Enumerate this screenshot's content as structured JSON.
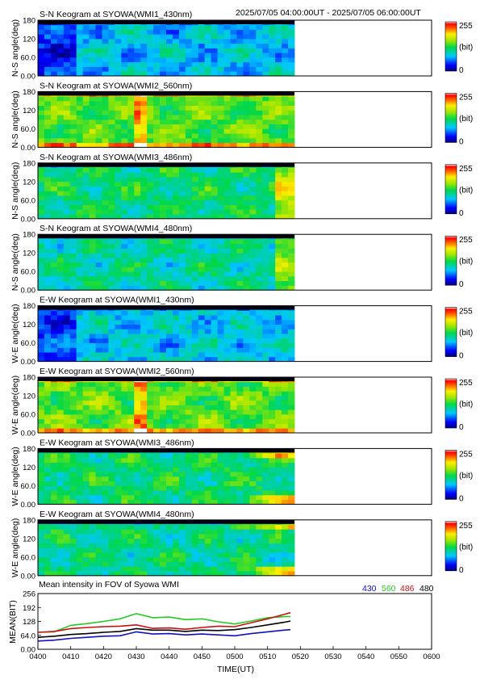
{
  "header": {
    "time_range": "2025/07/05 04:00:00UT - 2025/07/05 06:00:00UT"
  },
  "colorbar": {
    "max_label": "255",
    "unit_label": "(bit)",
    "min_label": "0"
  },
  "keograms": [
    {
      "title": "S-N Keogram at SYOWA(WMI1_430nm)",
      "ylabel": "N-S angle(deg)",
      "ticks": [
        "0.00",
        "60.0",
        "120",
        "180"
      ],
      "base": 0.3,
      "style": "blue"
    },
    {
      "title": "S-N Keogram at SYOWA(WMI2_560nm)",
      "ylabel": "N-S angle(deg)",
      "ticks": [
        "0.00",
        "60.0",
        "120",
        "180"
      ],
      "base": 0.55,
      "style": "green"
    },
    {
      "title": "S-N Keogram at SYOWA(WMI3_486nm)",
      "ylabel": "N-S angle(deg)",
      "ticks": [
        "0.00",
        "60.0",
        "120",
        "180"
      ],
      "base": 0.45,
      "style": "flat"
    },
    {
      "title": "S-N Keogram at SYOWA(WMI4_480nm)",
      "ylabel": "N-S angle(deg)",
      "ticks": [
        "0.00",
        "60.0",
        "120",
        "180"
      ],
      "base": 0.4,
      "style": "flat"
    },
    {
      "title": "E-W Keogram at SYOWA(WMI1_430nm)",
      "ylabel": "W-E angle(deg)",
      "ticks": [
        "0.00",
        "60.0",
        "120",
        "180"
      ],
      "base": 0.32,
      "style": "blue"
    },
    {
      "title": "E-W Keogram at SYOWA(WMI2_560nm)",
      "ylabel": "W-E angle(deg)",
      "ticks": [
        "0.00",
        "60.0",
        "120",
        "180"
      ],
      "base": 0.55,
      "style": "green"
    },
    {
      "title": "E-W Keogram at SYOWA(WMI3_486nm)",
      "ylabel": "W-E angle(deg)",
      "ticks": [
        "0.00",
        "60.0",
        "120",
        "180"
      ],
      "base": 0.45,
      "style": "red"
    },
    {
      "title": "E-W Keogram at SYOWA(WMI4_480nm)",
      "ylabel": "W-E angle(deg)",
      "ticks": [
        "0.00",
        "60.0",
        "120",
        "180"
      ],
      "base": 0.42,
      "style": "red"
    }
  ],
  "chart_data": {
    "type": "line",
    "title": "Mean intensity in FOV of Syowa WMI",
    "xlabel": "TIME(UT)",
    "ylabel": "MEAN(BIT)",
    "x_ticks": [
      "0400",
      "0410",
      "0420",
      "0430",
      "0440",
      "0450",
      "0500",
      "0510",
      "0520",
      "0530",
      "0540",
      "0550",
      "0600"
    ],
    "y_ticks": [
      "0.00",
      "64.0",
      "128",
      "192",
      "256"
    ],
    "ylim": [
      0,
      256
    ],
    "x_minutes_range": [
      0,
      120
    ],
    "x": [
      0,
      5,
      10,
      15,
      20,
      25,
      30,
      35,
      40,
      45,
      50,
      55,
      60,
      65,
      70,
      75,
      77
    ],
    "series": [
      {
        "name": "430",
        "color": "#1010c0",
        "values": [
          38,
          42,
          50,
          55,
          60,
          62,
          80,
          70,
          72,
          66,
          70,
          66,
          62,
          72,
          80,
          88,
          90
        ]
      },
      {
        "name": "560",
        "color": "#22cc22",
        "values": [
          78,
          80,
          110,
          118,
          128,
          140,
          164,
          145,
          148,
          136,
          140,
          126,
          116,
          130,
          145,
          150,
          150
        ]
      },
      {
        "name": "486",
        "color": "#cc1010",
        "values": [
          78,
          82,
          95,
          100,
          104,
          106,
          112,
          96,
          98,
          92,
          100,
          106,
          104,
          122,
          140,
          160,
          168
        ]
      },
      {
        "name": "480",
        "color": "#000000",
        "values": [
          55,
          60,
          68,
          72,
          78,
          82,
          95,
          88,
          88,
          82,
          88,
          86,
          90,
          100,
          112,
          124,
          130
        ]
      }
    ]
  }
}
